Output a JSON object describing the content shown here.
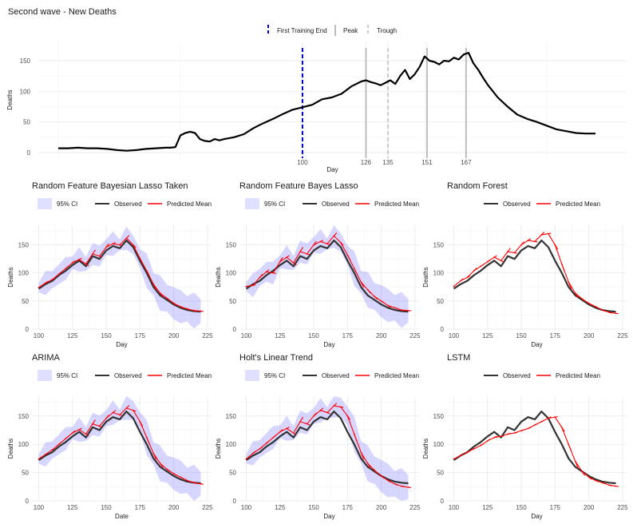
{
  "figure_title": "Second wave - New Deaths",
  "legend_top": {
    "first_training_end": "First Training End",
    "peak": "Peak",
    "trough": "Trough"
  },
  "legend_labels": {
    "ci": "95% CI",
    "observed": "Observed",
    "predicted": "Predicted Mean"
  },
  "colors": {
    "observed": "#333333",
    "top_series": "#000000",
    "predicted": "#ff0000",
    "ci": "#8080ff",
    "training_end": "#0000cc",
    "peak": "#bdbdbd",
    "trough": "#cccccc",
    "grid": "#ebebeb"
  },
  "chart_data": [
    {
      "id": "overview",
      "type": "line",
      "title": "Second wave - New Deaths",
      "xlabel": "Day",
      "ylabel": "Deaths",
      "xlim": [
        0,
        220
      ],
      "ylim": [
        0,
        170
      ],
      "xticks": [
        100,
        126,
        135,
        151,
        167
      ],
      "yticks": [
        0,
        50,
        100,
        150
      ],
      "grid": true,
      "legend_position": "top",
      "vlines": [
        {
          "x": 100,
          "kind": "First Training End"
        },
        {
          "x": 126,
          "kind": "Peak"
        },
        {
          "x": 135,
          "kind": "Trough"
        },
        {
          "x": 151,
          "kind": "Peak"
        },
        {
          "x": 167,
          "kind": "Peak"
        }
      ],
      "series": [
        {
          "x": [
            0,
            4,
            8,
            12,
            16,
            20,
            24,
            28,
            32,
            36,
            40,
            44,
            46,
            48,
            50,
            52,
            54,
            56,
            58,
            60,
            62,
            64,
            66,
            68,
            72,
            76,
            80,
            84,
            88,
            92,
            96,
            100,
            104,
            108,
            112,
            116,
            120,
            124,
            126,
            128,
            130,
            132,
            134,
            136,
            138,
            140,
            142,
            144,
            146,
            148,
            150,
            152,
            154,
            156,
            158,
            160,
            162,
            164,
            166,
            168,
            170,
            172,
            174,
            176,
            180,
            184,
            188,
            192,
            196,
            200,
            204,
            208,
            212,
            216,
            220
          ],
          "y": [
            7,
            7,
            8,
            7,
            7,
            6,
            4,
            3,
            4,
            6,
            7,
            8,
            8,
            9,
            28,
            32,
            34,
            32,
            22,
            19,
            18,
            22,
            20,
            22,
            25,
            30,
            40,
            48,
            55,
            63,
            70,
            74,
            78,
            87,
            90,
            96,
            108,
            116,
            118,
            115,
            113,
            110,
            114,
            118,
            112,
            125,
            135,
            120,
            128,
            140,
            157,
            150,
            148,
            144,
            150,
            149,
            155,
            152,
            160,
            163,
            146,
            135,
            122,
            110,
            90,
            75,
            62,
            55,
            50,
            44,
            38,
            35,
            32,
            31,
            31
          ]
        }
      ]
    },
    {
      "id": "rf_bayes_lasso_taken",
      "type": "line",
      "title": "Random Feature Bayesian Lasso Taken",
      "xlabel": "Day",
      "ylabel": "Deaths",
      "xlim": [
        95,
        228
      ],
      "ylim": [
        0,
        185
      ],
      "xticks": [
        100,
        125,
        150,
        175,
        200,
        225
      ],
      "yticks": [
        0,
        50,
        100,
        150
      ],
      "grid": true,
      "legend_position": "top",
      "series": [
        {
          "name": "Observed",
          "x": [
            100,
            105,
            110,
            115,
            120,
            125,
            130,
            135,
            140,
            145,
            150,
            155,
            160,
            165,
            170,
            175,
            180,
            185,
            190,
            195,
            200,
            205,
            210,
            215,
            220
          ],
          "y": [
            72,
            80,
            86,
            96,
            104,
            114,
            122,
            112,
            130,
            125,
            140,
            148,
            144,
            158,
            146,
            122,
            100,
            75,
            60,
            52,
            44,
            38,
            34,
            32,
            31
          ]
        },
        {
          "name": "Predicted Mean",
          "x": [
            100,
            105,
            110,
            115,
            120,
            125,
            130,
            135,
            140,
            145,
            150,
            155,
            160,
            165,
            170,
            175,
            180,
            185,
            190,
            195,
            200,
            205,
            210,
            215,
            220
          ],
          "y": [
            74,
            82,
            88,
            98,
            108,
            118,
            124,
            116,
            134,
            130,
            146,
            152,
            150,
            162,
            150,
            126,
            104,
            80,
            64,
            55,
            46,
            40,
            36,
            33,
            32
          ]
        }
      ]
    },
    {
      "id": "rf_bayes_lasso",
      "type": "line",
      "title": "Random Feature Bayes Lasso",
      "xlabel": "Day",
      "ylabel": "Deaths",
      "xlim": [
        95,
        228
      ],
      "ylim": [
        0,
        185
      ],
      "xticks": [
        100,
        125,
        150,
        175,
        200,
        225
      ],
      "yticks": [
        0,
        50,
        100,
        150
      ],
      "grid": true,
      "legend_position": "top",
      "series": [
        {
          "name": "Observed",
          "x": [
            100,
            105,
            110,
            115,
            120,
            125,
            130,
            135,
            140,
            145,
            150,
            155,
            160,
            165,
            170,
            175,
            180,
            185,
            190,
            195,
            200,
            205,
            210,
            215,
            220
          ],
          "y": [
            72,
            80,
            86,
            96,
            104,
            114,
            122,
            112,
            130,
            125,
            140,
            148,
            144,
            158,
            146,
            122,
            100,
            75,
            60,
            52,
            44,
            38,
            34,
            32,
            31
          ]
        },
        {
          "name": "Predicted Mean",
          "x": [
            100,
            105,
            110,
            115,
            120,
            125,
            130,
            135,
            140,
            145,
            150,
            155,
            160,
            165,
            170,
            175,
            180,
            185,
            190,
            195,
            200,
            205,
            210,
            215,
            220
          ],
          "y": [
            76,
            78,
            92,
            102,
            100,
            120,
            128,
            118,
            138,
            134,
            150,
            156,
            152,
            166,
            154,
            132,
            108,
            84,
            70,
            58,
            50,
            42,
            38,
            34,
            33
          ]
        }
      ]
    },
    {
      "id": "random_forest",
      "type": "line",
      "title": "Random Forest",
      "xlabel": "Day",
      "ylabel": "Deaths",
      "xlim": [
        95,
        228
      ],
      "ylim": [
        0,
        185
      ],
      "xticks": [
        100,
        125,
        150,
        175,
        200,
        225
      ],
      "yticks": [
        0,
        50,
        100,
        150
      ],
      "grid": true,
      "legend_position": "top",
      "series": [
        {
          "name": "Observed",
          "x": [
            100,
            105,
            110,
            115,
            120,
            125,
            130,
            135,
            140,
            145,
            150,
            155,
            160,
            165,
            170,
            175,
            180,
            185,
            190,
            195,
            200,
            205,
            210,
            215,
            220
          ],
          "y": [
            72,
            80,
            86,
            96,
            104,
            114,
            122,
            112,
            130,
            125,
            140,
            148,
            144,
            158,
            146,
            122,
            100,
            75,
            60,
            52,
            44,
            38,
            34,
            32,
            31
          ]
        },
        {
          "name": "Predicted Mean",
          "x": [
            100,
            105,
            110,
            115,
            120,
            125,
            130,
            135,
            140,
            145,
            150,
            155,
            160,
            165,
            170,
            175,
            180,
            185,
            190,
            195,
            200,
            205,
            210,
            215,
            220
          ],
          "y": [
            76,
            86,
            92,
            104,
            112,
            120,
            128,
            122,
            138,
            136,
            150,
            158,
            156,
            168,
            170,
            150,
            116,
            84,
            64,
            54,
            46,
            40,
            34,
            30,
            28
          ]
        }
      ]
    },
    {
      "id": "arima",
      "type": "line",
      "title": "ARIMA",
      "xlabel": "Date",
      "ylabel": "Deaths",
      "xlim": [
        95,
        228
      ],
      "ylim": [
        0,
        185
      ],
      "xticks": [
        100,
        125,
        150,
        175,
        200,
        225
      ],
      "yticks": [
        0,
        50,
        100,
        150
      ],
      "grid": true,
      "legend_position": "top",
      "series": [
        {
          "name": "Observed",
          "x": [
            100,
            105,
            110,
            115,
            120,
            125,
            130,
            135,
            140,
            145,
            150,
            155,
            160,
            165,
            170,
            175,
            180,
            185,
            190,
            195,
            200,
            205,
            210,
            215,
            220
          ],
          "y": [
            72,
            80,
            86,
            96,
            104,
            114,
            122,
            112,
            130,
            125,
            140,
            148,
            144,
            158,
            146,
            122,
            100,
            75,
            60,
            52,
            44,
            38,
            34,
            32,
            31
          ]
        },
        {
          "name": "Predicted Mean",
          "x": [
            100,
            105,
            110,
            115,
            120,
            125,
            130,
            135,
            140,
            145,
            150,
            155,
            160,
            165,
            170,
            175,
            180,
            185,
            190,
            195,
            200,
            205,
            210,
            215,
            220
          ],
          "y": [
            74,
            82,
            90,
            100,
            110,
            120,
            126,
            118,
            136,
            132,
            146,
            156,
            152,
            164,
            160,
            140,
            112,
            84,
            66,
            56,
            48,
            42,
            36,
            32,
            30
          ]
        }
      ]
    },
    {
      "id": "holts_linear_trend",
      "type": "line",
      "title": "Holt's Linear Trend",
      "xlabel": "Day",
      "ylabel": "Deaths",
      "xlim": [
        95,
        228
      ],
      "ylim": [
        0,
        185
      ],
      "xticks": [
        100,
        125,
        150,
        175,
        200,
        225
      ],
      "yticks": [
        0,
        50,
        100,
        150
      ],
      "grid": true,
      "legend_position": "top",
      "series": [
        {
          "name": "Observed",
          "x": [
            100,
            105,
            110,
            115,
            120,
            125,
            130,
            135,
            140,
            145,
            150,
            155,
            160,
            165,
            170,
            175,
            180,
            185,
            190,
            195,
            200,
            205,
            210,
            215,
            220
          ],
          "y": [
            72,
            80,
            86,
            96,
            104,
            114,
            122,
            112,
            130,
            125,
            140,
            148,
            144,
            158,
            146,
            122,
            100,
            75,
            60,
            52,
            44,
            38,
            34,
            32,
            31
          ]
        },
        {
          "name": "Predicted Mean",
          "x": [
            100,
            105,
            110,
            115,
            120,
            125,
            130,
            135,
            140,
            145,
            150,
            155,
            160,
            165,
            170,
            175,
            180,
            185,
            190,
            195,
            200,
            205,
            210,
            215,
            220
          ],
          "y": [
            74,
            84,
            92,
            102,
            112,
            122,
            128,
            120,
            140,
            136,
            150,
            160,
            156,
            168,
            166,
            150,
            118,
            86,
            66,
            54,
            44,
            36,
            30,
            26,
            24
          ]
        }
      ]
    },
    {
      "id": "lstm",
      "type": "line",
      "title": "LSTM",
      "xlabel": "Day",
      "ylabel": "Deaths",
      "xlim": [
        95,
        228
      ],
      "ylim": [
        0,
        185
      ],
      "xticks": [
        100,
        125,
        150,
        175,
        200,
        225
      ],
      "yticks": [
        0,
        50,
        100,
        150
      ],
      "grid": true,
      "legend_position": "top",
      "series": [
        {
          "name": "Observed",
          "x": [
            100,
            105,
            110,
            115,
            120,
            125,
            130,
            135,
            140,
            145,
            150,
            155,
            160,
            165,
            170,
            175,
            180,
            185,
            190,
            195,
            200,
            205,
            210,
            215,
            220
          ],
          "y": [
            72,
            80,
            86,
            96,
            104,
            114,
            122,
            112,
            130,
            125,
            140,
            148,
            144,
            158,
            146,
            122,
            100,
            75,
            60,
            52,
            44,
            38,
            34,
            32,
            31
          ]
        },
        {
          "name": "Predicted Mean",
          "x": [
            100,
            105,
            110,
            115,
            120,
            125,
            130,
            135,
            140,
            145,
            150,
            155,
            160,
            165,
            170,
            175,
            180,
            185,
            190,
            195,
            200,
            205,
            210,
            215,
            220
          ],
          "y": [
            74,
            80,
            86,
            92,
            98,
            106,
            112,
            114,
            118,
            120,
            124,
            128,
            134,
            140,
            146,
            148,
            130,
            100,
            70,
            52,
            42,
            36,
            32,
            28,
            26
          ]
        }
      ]
    }
  ]
}
